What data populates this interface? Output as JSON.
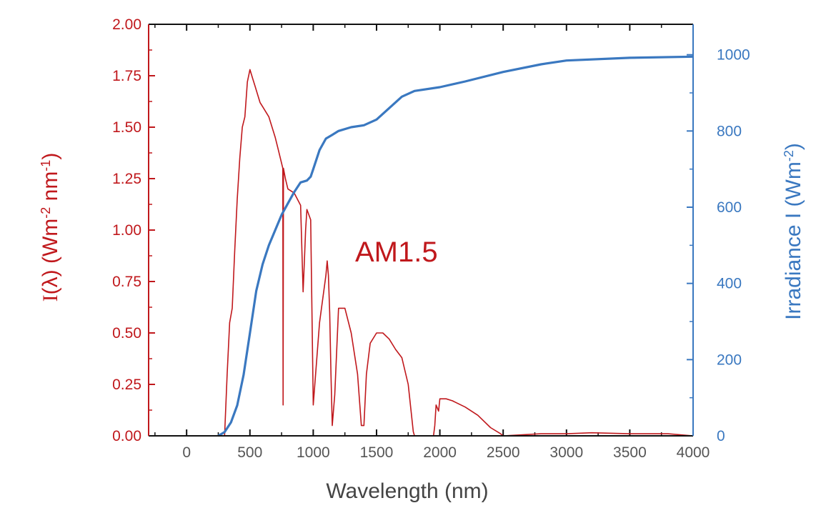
{
  "chart_data": {
    "type": "line",
    "annotation": "AM1.5",
    "xlabel": "Wavelength (nm)",
    "ylabel_left_prefix": "I",
    "ylabel_left_rest": "(λ) (Wm-2 nm-1)",
    "ylabel_right": "Irradiance I (Wm-2)",
    "xlim": [
      -300,
      4000
    ],
    "ylim_left": [
      0,
      2.0
    ],
    "ylim_right": [
      0,
      1080
    ],
    "x_ticks": [
      "0",
      "500",
      "1000",
      "1500",
      "2000",
      "2500",
      "3000",
      "3500",
      "4000"
    ],
    "y_left_ticks": [
      "0.00",
      "0.25",
      "0.50",
      "0.75",
      "1.00",
      "1.25",
      "1.50",
      "1.75",
      "2.00"
    ],
    "y_right_ticks": [
      "0",
      "200",
      "400",
      "600",
      "800",
      "1000"
    ],
    "colors": {
      "spectral": "#c0181c",
      "irradiance": "#3a78c0",
      "frame": "#111111",
      "left_axis": "#c0181c",
      "right_axis": "#3a78c0"
    },
    "series": [
      {
        "axis": "left",
        "x": [
          300,
          320,
          340,
          360,
          380,
          400,
          420,
          440,
          460,
          480,
          500,
          520,
          540,
          560,
          580,
          600,
          650,
          700,
          720,
          740,
          760,
          762,
          765,
          780,
          800,
          850,
          900,
          920,
          930,
          940,
          950,
          980,
          1000,
          1050,
          1100,
          1110,
          1120,
          1130,
          1140,
          1150,
          1170,
          1200,
          1250,
          1300,
          1350,
          1380,
          1400,
          1420,
          1450,
          1500,
          1550,
          1600,
          1650,
          1700,
          1750,
          1790,
          1800,
          1810,
          1850,
          1900,
          1950,
          1960,
          1970,
          1990,
          2000,
          2050,
          2100,
          2200,
          2300,
          2400,
          2480,
          2500,
          2800,
          3000,
          3200,
          3500,
          3800,
          4000
        ],
        "y": [
          0,
          0.3,
          0.55,
          0.62,
          0.9,
          1.15,
          1.35,
          1.5,
          1.55,
          1.72,
          1.78,
          1.74,
          1.7,
          1.66,
          1.62,
          1.6,
          1.55,
          1.45,
          1.4,
          1.35,
          1.3,
          0.15,
          1.3,
          1.25,
          1.2,
          1.18,
          1.12,
          0.7,
          0.85,
          1.0,
          1.1,
          1.05,
          0.15,
          0.55,
          0.78,
          0.85,
          0.78,
          0.6,
          0.3,
          0.05,
          0.2,
          0.62,
          0.62,
          0.5,
          0.3,
          0.05,
          0.05,
          0.3,
          0.45,
          0.5,
          0.5,
          0.47,
          0.42,
          0.38,
          0.25,
          0.02,
          0,
          0,
          0,
          0,
          0,
          0.05,
          0.15,
          0.12,
          0.18,
          0.18,
          0.17,
          0.14,
          0.1,
          0.04,
          0.01,
          0,
          0.01,
          0.01,
          0.015,
          0.01,
          0.01,
          0
        ]
      },
      {
        "axis": "right",
        "x": [
          250,
          300,
          350,
          400,
          450,
          500,
          550,
          600,
          650,
          700,
          750,
          800,
          850,
          900,
          950,
          980,
          1000,
          1050,
          1100,
          1150,
          1200,
          1300,
          1400,
          1500,
          1600,
          1700,
          1800,
          2000,
          2200,
          2500,
          2800,
          3000,
          3500,
          4000
        ],
        "y": [
          0,
          10,
          35,
          80,
          160,
          270,
          380,
          450,
          500,
          540,
          580,
          610,
          640,
          665,
          670,
          680,
          700,
          750,
          780,
          790,
          800,
          810,
          815,
          830,
          860,
          890,
          905,
          915,
          930,
          955,
          975,
          985,
          992,
          995
        ]
      }
    ]
  }
}
